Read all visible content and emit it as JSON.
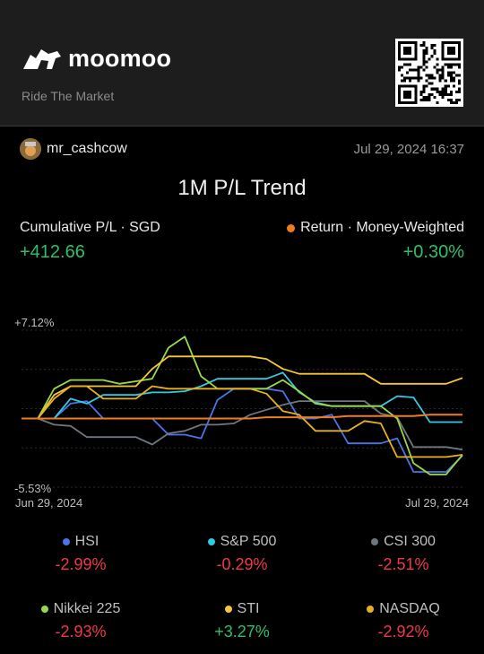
{
  "header": {
    "brand": "moomoo",
    "tagline": "Ride The Market"
  },
  "user": {
    "name": "mr_cashcow",
    "timestamp": "Jul 29, 2024 16:37"
  },
  "title": "1M P/L Trend",
  "summary": {
    "left_label": "Cumulative P/L · SGD",
    "left_value": "+412.66",
    "right_label": "Return · Money-Weighted",
    "right_value": "+0.30%",
    "right_dot_color": "#f07c1c"
  },
  "chart_data": {
    "type": "line",
    "y_max_label": "+7.12%",
    "y_min_label": "-5.53%",
    "x_start_label": "Jun 29, 2024",
    "x_end_label": "Jul 29, 2024",
    "ylim": [
      -5.53,
      7.12
    ],
    "series": [
      {
        "name": "HSI",
        "color": "#4a74e8",
        "values": [
          0,
          0,
          0,
          1.2,
          1.4,
          0,
          0,
          0,
          0,
          -1.3,
          -1.3,
          -1.6,
          1.5,
          2.4,
          2.4,
          2.4,
          2.2,
          0,
          0,
          0.3,
          -2.0,
          -2.0,
          -2.0,
          -1.6,
          -4.3,
          -4.3,
          -4.3,
          -2.99
        ]
      },
      {
        "name": "S&P 500",
        "color": "#35c8e4",
        "values": [
          0,
          0,
          0,
          1.6,
          1.2,
          1.9,
          1.9,
          1.9,
          2.1,
          2.1,
          2.2,
          2.6,
          3.2,
          3.2,
          3.2,
          3.2,
          3.7,
          2.1,
          1.3,
          1.0,
          1.0,
          1.0,
          1.0,
          1.8,
          1.7,
          -0.29,
          -0.29,
          -0.29
        ]
      },
      {
        "name": "CSI 300",
        "color": "#70767f",
        "values": [
          0,
          0,
          -0.5,
          -0.6,
          -1.5,
          -1.5,
          -1.5,
          -1.5,
          -2.1,
          -1.2,
          -1.0,
          -0.5,
          -0.5,
          -0.4,
          0.3,
          0.7,
          1.1,
          1.4,
          1.4,
          1.4,
          1.4,
          1.4,
          0.4,
          0.1,
          -2.3,
          -2.3,
          -2.3,
          -2.51
        ]
      },
      {
        "name": "Nikkei 225",
        "color": "#98d84c",
        "values": [
          0,
          0,
          2.4,
          3.1,
          3.1,
          3.1,
          2.8,
          3.0,
          3.2,
          5.7,
          6.6,
          3.4,
          2.4,
          2.4,
          2.4,
          2.4,
          3.1,
          2.2,
          1.2,
          1.0,
          1.0,
          1.0,
          1.0,
          0,
          -3.6,
          -4.5,
          -4.5,
          -2.93
        ]
      },
      {
        "name": "STI",
        "color": "#f5c63a",
        "values": [
          0,
          0,
          1.9,
          2.6,
          2.6,
          2.6,
          2.6,
          2.6,
          4.0,
          5.0,
          5.0,
          5.0,
          5.0,
          5.0,
          5.0,
          4.8,
          4.0,
          3.6,
          3.6,
          3.6,
          3.6,
          3.6,
          2.8,
          2.8,
          2.8,
          2.8,
          2.8,
          3.27
        ]
      },
      {
        "name": "NASDAQ",
        "color": "#e8b020",
        "values": [
          0,
          0,
          1.6,
          2.6,
          2.6,
          1.6,
          1.6,
          1.6,
          2.6,
          2.4,
          2.4,
          2.4,
          2.4,
          2.4,
          2.4,
          2.0,
          0.6,
          0.3,
          -1.0,
          -1.0,
          -1.0,
          -0.2,
          -0.4,
          -3.1,
          -3.1,
          -3.1,
          -3.1,
          -2.92
        ]
      },
      {
        "name": "Return",
        "color": "#f07c1c",
        "values": [
          0,
          0,
          0,
          0,
          0,
          0,
          0,
          0,
          0,
          0,
          0,
          0,
          0,
          0,
          0,
          0.1,
          0.1,
          0.1,
          0.1,
          0.1,
          0.2,
          0.2,
          0.2,
          0.2,
          0.2,
          0.3,
          0.3,
          0.3
        ]
      }
    ]
  },
  "legend": [
    {
      "name": "HSI",
      "value": "-2.99%",
      "color": "#4a74e8",
      "value_color": "#f0384a"
    },
    {
      "name": "S&P 500",
      "value": "-0.29%",
      "color": "#35c8e4",
      "value_color": "#f0384a"
    },
    {
      "name": "CSI 300",
      "value": "-2.51%",
      "color": "#70767f",
      "value_color": "#f0384a"
    },
    {
      "name": "Nikkei 225",
      "value": "-2.93%",
      "color": "#98d84c",
      "value_color": "#f0384a"
    },
    {
      "name": "STI",
      "value": "+3.27%",
      "color": "#f5c63a",
      "value_color": "#2fbf6c"
    },
    {
      "name": "NASDAQ",
      "value": "-2.92%",
      "color": "#e8b020",
      "value_color": "#f0384a"
    }
  ]
}
